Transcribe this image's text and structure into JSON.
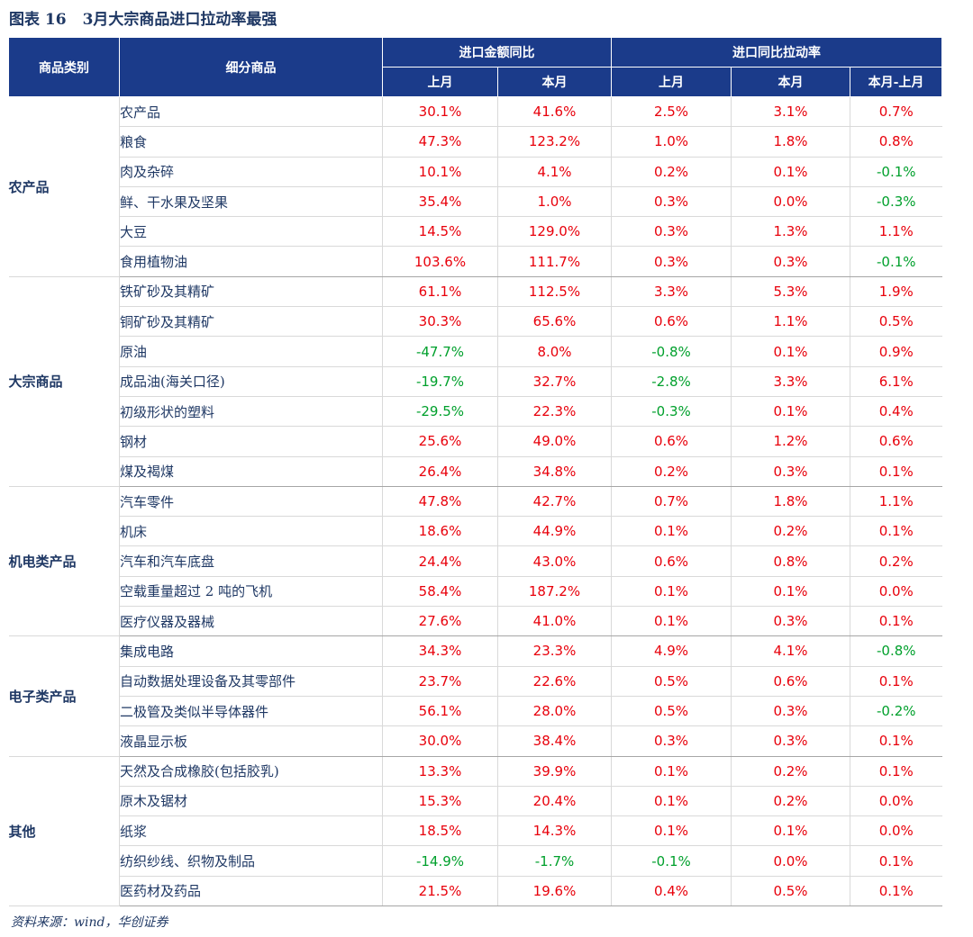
{
  "title": {
    "figure": "图表 16",
    "text": "3月大宗商品进口拉动率最强"
  },
  "headers": {
    "category": "商品类别",
    "subitem": "细分商品",
    "group1": "进口金额同比",
    "group2": "进口同比拉动率",
    "last_month": "上月",
    "this_month": "本月",
    "diff": "本月-上月"
  },
  "colors": {
    "header_bg": "#1b3b8a",
    "positive": "#e8000b",
    "negative": "#00a02c",
    "text": "#1f3864"
  },
  "groups": [
    {
      "category": "农产品",
      "rows": [
        {
          "name": "农产品",
          "v": [
            "30.1%",
            "41.6%",
            "2.5%",
            "3.1%",
            "0.7%"
          ]
        },
        {
          "name": "粮食",
          "v": [
            "47.3%",
            "123.2%",
            "1.0%",
            "1.8%",
            "0.8%"
          ]
        },
        {
          "name": "肉及杂碎",
          "v": [
            "10.1%",
            "4.1%",
            "0.2%",
            "0.1%",
            "-0.1%"
          ]
        },
        {
          "name": "鲜、干水果及坚果",
          "v": [
            "35.4%",
            "1.0%",
            "0.3%",
            "0.0%",
            "-0.3%"
          ]
        },
        {
          "name": "大豆",
          "v": [
            "14.5%",
            "129.0%",
            "0.3%",
            "1.3%",
            "1.1%"
          ]
        },
        {
          "name": "食用植物油",
          "v": [
            "103.6%",
            "111.7%",
            "0.3%",
            "0.3%",
            "-0.1%"
          ]
        }
      ]
    },
    {
      "category": "大宗商品",
      "rows": [
        {
          "name": "铁矿砂及其精矿",
          "v": [
            "61.1%",
            "112.5%",
            "3.3%",
            "5.3%",
            "1.9%"
          ]
        },
        {
          "name": "铜矿砂及其精矿",
          "v": [
            "30.3%",
            "65.6%",
            "0.6%",
            "1.1%",
            "0.5%"
          ]
        },
        {
          "name": "原油",
          "v": [
            "-47.7%",
            "8.0%",
            "-0.8%",
            "0.1%",
            "0.9%"
          ]
        },
        {
          "name": "成品油(海关口径)",
          "v": [
            "-19.7%",
            "32.7%",
            "-2.8%",
            "3.3%",
            "6.1%"
          ]
        },
        {
          "name": "初级形状的塑料",
          "v": [
            "-29.5%",
            "22.3%",
            "-0.3%",
            "0.1%",
            "0.4%"
          ]
        },
        {
          "name": "钢材",
          "v": [
            "25.6%",
            "49.0%",
            "0.6%",
            "1.2%",
            "0.6%"
          ]
        },
        {
          "name": "煤及褐煤",
          "v": [
            "26.4%",
            "34.8%",
            "0.2%",
            "0.3%",
            "0.1%"
          ]
        }
      ]
    },
    {
      "category": "机电类产品",
      "rows": [
        {
          "name": "汽车零件",
          "v": [
            "47.8%",
            "42.7%",
            "0.7%",
            "1.8%",
            "1.1%"
          ]
        },
        {
          "name": "机床",
          "v": [
            "18.6%",
            "44.9%",
            "0.1%",
            "0.2%",
            "0.1%"
          ]
        },
        {
          "name": "汽车和汽车底盘",
          "v": [
            "24.4%",
            "43.0%",
            "0.6%",
            "0.8%",
            "0.2%"
          ]
        },
        {
          "name": "空载重量超过 2 吨的飞机",
          "v": [
            "58.4%",
            "187.2%",
            "0.1%",
            "0.1%",
            "0.0%"
          ]
        },
        {
          "name": "医疗仪器及器械",
          "v": [
            "27.6%",
            "41.0%",
            "0.1%",
            "0.3%",
            "0.1%"
          ]
        }
      ]
    },
    {
      "category": "电子类产品",
      "rows": [
        {
          "name": "集成电路",
          "v": [
            "34.3%",
            "23.3%",
            "4.9%",
            "4.1%",
            "-0.8%"
          ]
        },
        {
          "name": "自动数据处理设备及其零部件",
          "v": [
            "23.7%",
            "22.6%",
            "0.5%",
            "0.6%",
            "0.1%"
          ]
        },
        {
          "name": "二极管及类似半导体器件",
          "v": [
            "56.1%",
            "28.0%",
            "0.5%",
            "0.3%",
            "-0.2%"
          ]
        },
        {
          "name": "液晶显示板",
          "v": [
            "30.0%",
            "38.4%",
            "0.3%",
            "0.3%",
            "0.1%"
          ]
        }
      ]
    },
    {
      "category": "其他",
      "rows": [
        {
          "name": "天然及合成橡胶(包括胶乳)",
          "v": [
            "13.3%",
            "39.9%",
            "0.1%",
            "0.2%",
            "0.1%"
          ]
        },
        {
          "name": "原木及锯材",
          "v": [
            "15.3%",
            "20.4%",
            "0.1%",
            "0.2%",
            "0.0%"
          ]
        },
        {
          "name": "纸浆",
          "v": [
            "18.5%",
            "14.3%",
            "0.1%",
            "0.1%",
            "0.0%"
          ]
        },
        {
          "name": "纺织纱线、织物及制品",
          "v": [
            "-14.9%",
            "-1.7%",
            "-0.1%",
            "0.0%",
            "0.1%"
          ]
        },
        {
          "name": "医药材及药品",
          "v": [
            "21.5%",
            "19.6%",
            "0.4%",
            "0.5%",
            "0.1%"
          ]
        }
      ]
    }
  ],
  "source": "资料来源：wind，华创证券"
}
